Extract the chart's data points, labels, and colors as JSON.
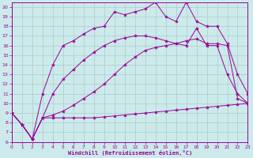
{
  "background_color": "#cceaea",
  "grid_color": "#aacccc",
  "line_color": "#990099",
  "xlabel": "Windchill (Refroidissement éolien,°C)",
  "xlim": [
    0,
    23
  ],
  "ylim": [
    6,
    20.5
  ],
  "xticks": [
    0,
    1,
    2,
    3,
    4,
    5,
    6,
    7,
    8,
    9,
    10,
    11,
    12,
    13,
    14,
    15,
    16,
    17,
    18,
    19,
    20,
    21,
    22,
    23
  ],
  "yticks": [
    6,
    7,
    8,
    9,
    10,
    11,
    12,
    13,
    14,
    15,
    16,
    17,
    18,
    19,
    20
  ],
  "lines": [
    {
      "x": [
        0,
        1,
        2,
        3,
        4,
        5,
        6,
        7,
        8,
        9,
        10,
        11,
        12,
        13,
        14,
        15,
        16,
        17,
        18,
        19,
        20,
        21,
        22,
        23
      ],
      "y": [
        9.0,
        7.8,
        6.3,
        8.5,
        8.5,
        8.5,
        8.5,
        8.5,
        8.5,
        8.6,
        8.7,
        8.8,
        8.9,
        9.0,
        9.1,
        9.2,
        9.3,
        9.4,
        9.5,
        9.6,
        9.7,
        9.8,
        9.9,
        10.0
      ]
    },
    {
      "x": [
        0,
        1,
        2,
        3,
        4,
        5,
        6,
        7,
        8,
        9,
        10,
        11,
        12,
        13,
        14,
        15,
        16,
        17,
        18,
        19,
        20,
        21,
        22,
        23
      ],
      "y": [
        9.0,
        7.8,
        6.3,
        8.5,
        8.8,
        9.2,
        9.8,
        10.5,
        11.2,
        12.0,
        13.0,
        14.0,
        14.8,
        15.5,
        15.8,
        16.0,
        16.2,
        16.5,
        16.7,
        16.2,
        16.2,
        16.0,
        10.5,
        10.0
      ]
    },
    {
      "x": [
        0,
        1,
        2,
        3,
        4,
        5,
        6,
        7,
        8,
        9,
        10,
        11,
        12,
        13,
        14,
        15,
        16,
        17,
        18,
        19,
        20,
        21,
        22,
        23
      ],
      "y": [
        9.0,
        7.8,
        6.3,
        8.5,
        11.0,
        12.5,
        13.5,
        14.5,
        15.3,
        16.0,
        16.5,
        16.8,
        17.0,
        17.0,
        16.8,
        16.5,
        16.2,
        16.0,
        17.8,
        16.0,
        16.0,
        13.0,
        11.0,
        10.0
      ]
    },
    {
      "x": [
        0,
        1,
        2,
        3,
        4,
        5,
        6,
        7,
        8,
        9,
        10,
        11,
        12,
        13,
        14,
        15,
        16,
        17,
        18,
        19,
        20,
        21,
        22,
        23
      ],
      "y": [
        9.0,
        7.8,
        6.3,
        11.0,
        14.0,
        16.0,
        16.5,
        17.2,
        17.8,
        18.0,
        19.5,
        19.2,
        19.5,
        19.8,
        20.5,
        19.0,
        18.5,
        20.5,
        18.5,
        18.0,
        18.0,
        16.2,
        13.0,
        11.0
      ]
    }
  ]
}
